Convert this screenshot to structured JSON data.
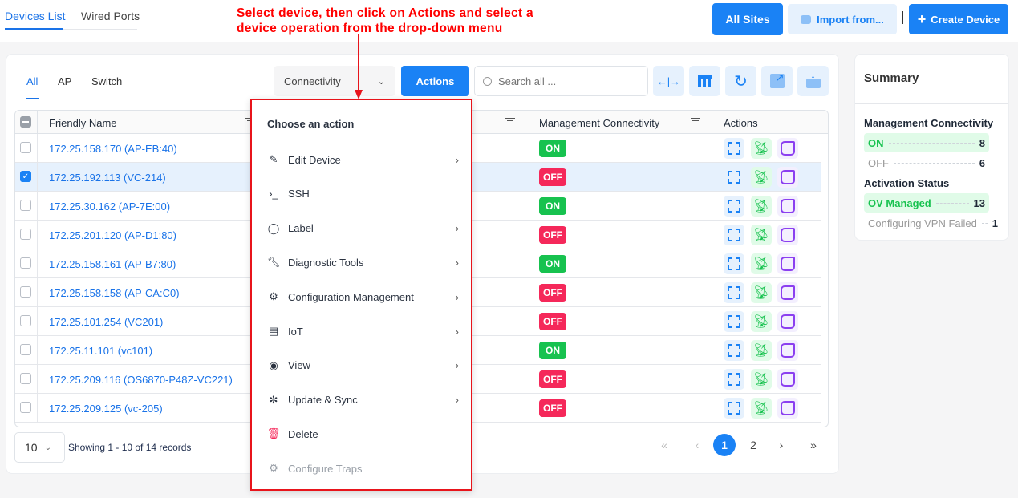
{
  "annotation": {
    "line1": "Select device, then click on Actions and select a",
    "line2": "device operation from the drop-down menu"
  },
  "top_tabs": [
    {
      "label": "Devices List",
      "active": true
    },
    {
      "label": "Wired Ports",
      "active": false
    }
  ],
  "header_buttons": {
    "all_sites": "All Sites",
    "import": "Import from...",
    "create": "Create Device"
  },
  "filter_tabs": [
    {
      "label": "All",
      "active": true
    },
    {
      "label": "AP"
    },
    {
      "label": "Switch"
    }
  ],
  "toolbar": {
    "connectivity": "Connectivity",
    "actions": "Actions",
    "search_placeholder": "Search all ...",
    "icons": [
      "resize-columns-icon",
      "table-layout-icon",
      "refresh-icon",
      "external-link-icon",
      "upload-icon"
    ]
  },
  "table": {
    "columns": [
      "Friendly Name",
      "",
      "Management Connectivity",
      "Actions"
    ],
    "rows": [
      {
        "name": "172.25.158.170 (AP-EB:40)",
        "status": "ON",
        "selected": false
      },
      {
        "name": "172.25.192.113 (VC-214)",
        "status": "OFF",
        "selected": true
      },
      {
        "name": "172.25.30.162 (AP-7E:00)",
        "status": "ON",
        "selected": false
      },
      {
        "name": "172.25.201.120 (AP-D1:80)",
        "status": "OFF",
        "selected": false
      },
      {
        "name": "172.25.158.161 (AP-B7:80)",
        "status": "ON",
        "selected": false
      },
      {
        "name": "172.25.158.158 (AP-CA:C0)",
        "status": "OFF",
        "selected": false
      },
      {
        "name": "172.25.101.254 (VC201)",
        "status": "OFF",
        "selected": false
      },
      {
        "name": "172.25.11.101 (vc101)",
        "status": "ON",
        "selected": false
      },
      {
        "name": "172.25.209.116 (OS6870-P48Z-VC221)",
        "status": "OFF",
        "selected": false
      },
      {
        "name": "172.25.209.125 (vc-205)",
        "status": "OFF",
        "selected": false
      }
    ]
  },
  "menu": {
    "title": "Choose an action",
    "items": [
      {
        "label": "Edit Device",
        "icon": "edit-device-icon",
        "submenu": true
      },
      {
        "label": "SSH",
        "icon": "terminal-icon",
        "submenu": false
      },
      {
        "label": "Label",
        "icon": "tag-icon",
        "submenu": true
      },
      {
        "label": "Diagnostic Tools",
        "icon": "wrench-icon",
        "submenu": true
      },
      {
        "label": "Configuration Management",
        "icon": "gear-icon",
        "submenu": true
      },
      {
        "label": "IoT",
        "icon": "iot-icon",
        "submenu": true
      },
      {
        "label": "View",
        "icon": "eye-icon",
        "submenu": true
      },
      {
        "label": "Update & Sync",
        "icon": "sync-icon",
        "submenu": true
      },
      {
        "label": "Delete",
        "icon": "trash-icon",
        "submenu": false
      },
      {
        "label": "Configure Traps",
        "icon": "gear-icon",
        "submenu": false,
        "disabled": true
      }
    ]
  },
  "pagination": {
    "page_size": "10",
    "showing": "Showing 1 - 10 of 14 records",
    "pages": [
      "1",
      "2"
    ],
    "current": "1"
  },
  "summary": {
    "title": "Summary",
    "mgmt_title": "Management Connectivity",
    "on_label": "ON",
    "on_count": "8",
    "off_label": "OFF",
    "off_count": "6",
    "activation_title": "Activation Status",
    "managed_label": "OV Managed",
    "managed_count": "13",
    "vpn_label": "Configuring VPN Failed",
    "vpn_count": "1"
  },
  "colors": {
    "primary": "#1a82f5",
    "on": "#17c24f",
    "off": "#f5285a",
    "annotation": "#ff0000"
  }
}
